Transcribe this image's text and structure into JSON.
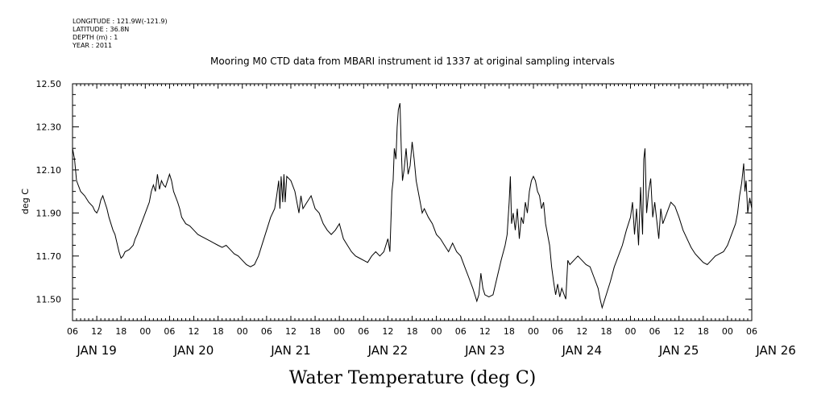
{
  "meta": {
    "longitude": "LONGITUDE : 121.9W(-121.9)",
    "latitude": "LATITUDE : 36.8N",
    "depth": "DEPTH (m) : 1",
    "year": "YEAR : 2011"
  },
  "chart_data": {
    "type": "line",
    "title": "Mooring M0 CTD data from MBARI instrument id 1337 at original sampling intervals",
    "xlabel": "Water Temperature (deg C)",
    "ylabel": "deg C",
    "ylim": [
      11.4,
      12.5
    ],
    "yticks": [
      "11.50",
      "11.70",
      "11.90",
      "12.10",
      "12.30",
      "12.50"
    ],
    "xlim": [
      0,
      168
    ],
    "x_unit": "hours since JAN 19 06",
    "hour_ticks": [
      "06",
      "12",
      "18",
      "00",
      "06",
      "12",
      "18",
      "00",
      "06",
      "12",
      "18",
      "00",
      "06",
      "12",
      "18",
      "00",
      "06",
      "12",
      "18",
      "00",
      "06",
      "12",
      "18",
      "00",
      "06",
      "12",
      "18",
      "00",
      "06"
    ],
    "day_labels": [
      "JAN 19",
      "JAN 20",
      "JAN 21",
      "JAN 22",
      "JAN 23",
      "JAN 24",
      "JAN 25",
      "JAN 26"
    ],
    "grid": false,
    "series": [
      {
        "color": "#000000",
        "points": [
          [
            0,
            12.2
          ],
          [
            0.5,
            12.15
          ],
          [
            1,
            12.05
          ],
          [
            2,
            12.0
          ],
          [
            3,
            11.98
          ],
          [
            4,
            11.95
          ],
          [
            5,
            11.93
          ],
          [
            5.5,
            11.91
          ],
          [
            6,
            11.9
          ],
          [
            6.5,
            11.92
          ],
          [
            7,
            11.96
          ],
          [
            7.5,
            11.98
          ],
          [
            8,
            11.95
          ],
          [
            8.5,
            11.92
          ],
          [
            9,
            11.88
          ],
          [
            9.5,
            11.85
          ],
          [
            10,
            11.82
          ],
          [
            10.5,
            11.8
          ],
          [
            11,
            11.76
          ],
          [
            11.5,
            11.72
          ],
          [
            12,
            11.69
          ],
          [
            12.5,
            11.7
          ],
          [
            13,
            11.72
          ],
          [
            14,
            11.73
          ],
          [
            15,
            11.75
          ],
          [
            15.5,
            11.78
          ],
          [
            16,
            11.8
          ],
          [
            17,
            11.85
          ],
          [
            18,
            11.9
          ],
          [
            19,
            11.95
          ],
          [
            19.5,
            12.0
          ],
          [
            20,
            12.03
          ],
          [
            20.5,
            12.0
          ],
          [
            21,
            12.08
          ],
          [
            21.5,
            12.01
          ],
          [
            22,
            12.05
          ],
          [
            22.5,
            12.03
          ],
          [
            23,
            12.02
          ],
          [
            23.5,
            12.05
          ],
          [
            24,
            12.08
          ],
          [
            24.5,
            12.05
          ],
          [
            25,
            12.0
          ],
          [
            26,
            11.95
          ],
          [
            26.5,
            11.92
          ],
          [
            27,
            11.88
          ],
          [
            28,
            11.85
          ],
          [
            29,
            11.84
          ],
          [
            30,
            11.82
          ],
          [
            31,
            11.8
          ],
          [
            32,
            11.79
          ],
          [
            33,
            11.78
          ],
          [
            34,
            11.77
          ],
          [
            35,
            11.76
          ],
          [
            36,
            11.75
          ],
          [
            37,
            11.74
          ],
          [
            38,
            11.75
          ],
          [
            39,
            11.73
          ],
          [
            40,
            11.71
          ],
          [
            41,
            11.7
          ],
          [
            42,
            11.68
          ],
          [
            43,
            11.66
          ],
          [
            44,
            11.65
          ],
          [
            45,
            11.66
          ],
          [
            46,
            11.7
          ],
          [
            47,
            11.76
          ],
          [
            48,
            11.82
          ],
          [
            49,
            11.88
          ],
          [
            50,
            11.92
          ],
          [
            50.5,
            11.98
          ],
          [
            51,
            12.05
          ],
          [
            51.3,
            11.92
          ],
          [
            51.6,
            12.07
          ],
          [
            52,
            11.95
          ],
          [
            52.3,
            12.08
          ],
          [
            52.6,
            11.95
          ],
          [
            53,
            12.07
          ],
          [
            54,
            12.05
          ],
          [
            55,
            12.0
          ],
          [
            55.5,
            11.95
          ],
          [
            56,
            11.9
          ],
          [
            56.5,
            11.98
          ],
          [
            57,
            11.92
          ],
          [
            58,
            11.95
          ],
          [
            59,
            11.98
          ],
          [
            60,
            11.92
          ],
          [
            61,
            11.9
          ],
          [
            62,
            11.85
          ],
          [
            63,
            11.82
          ],
          [
            64,
            11.8
          ],
          [
            65,
            11.82
          ],
          [
            66,
            11.85
          ],
          [
            67,
            11.78
          ],
          [
            68,
            11.75
          ],
          [
            69,
            11.72
          ],
          [
            70,
            11.7
          ],
          [
            71,
            11.69
          ],
          [
            72,
            11.68
          ],
          [
            73,
            11.67
          ],
          [
            74,
            11.7
          ],
          [
            75,
            11.72
          ],
          [
            76,
            11.7
          ],
          [
            77,
            11.72
          ],
          [
            78,
            11.78
          ],
          [
            78.5,
            11.72
          ],
          [
            79,
            12.0
          ],
          [
            79.3,
            12.05
          ],
          [
            79.6,
            12.2
          ],
          [
            80,
            12.15
          ],
          [
            80.3,
            12.3
          ],
          [
            80.6,
            12.38
          ],
          [
            81,
            12.41
          ],
          [
            81.3,
            12.2
          ],
          [
            81.6,
            12.05
          ],
          [
            82,
            12.1
          ],
          [
            82.5,
            12.2
          ],
          [
            83,
            12.08
          ],
          [
            83.5,
            12.12
          ],
          [
            84,
            12.23
          ],
          [
            84.5,
            12.15
          ],
          [
            85,
            12.05
          ],
          [
            86,
            11.95
          ],
          [
            86.5,
            11.9
          ],
          [
            87,
            11.92
          ],
          [
            88,
            11.88
          ],
          [
            89,
            11.85
          ],
          [
            90,
            11.8
          ],
          [
            91,
            11.78
          ],
          [
            92,
            11.75
          ],
          [
            93,
            11.72
          ],
          [
            94,
            11.76
          ],
          [
            95,
            11.72
          ],
          [
            96,
            11.7
          ],
          [
            97,
            11.65
          ],
          [
            98,
            11.6
          ],
          [
            99,
            11.55
          ],
          [
            100,
            11.49
          ],
          [
            100.5,
            11.52
          ],
          [
            101,
            11.62
          ],
          [
            101.5,
            11.55
          ],
          [
            102,
            11.52
          ],
          [
            103,
            11.51
          ],
          [
            104,
            11.52
          ],
          [
            105,
            11.6
          ],
          [
            106,
            11.68
          ],
          [
            107,
            11.75
          ],
          [
            107.5,
            11.8
          ],
          [
            108,
            11.95
          ],
          [
            108.3,
            12.07
          ],
          [
            108.6,
            11.85
          ],
          [
            109,
            11.9
          ],
          [
            109.5,
            11.82
          ],
          [
            110,
            11.92
          ],
          [
            110.5,
            11.78
          ],
          [
            111,
            11.88
          ],
          [
            111.5,
            11.85
          ],
          [
            112,
            11.95
          ],
          [
            112.5,
            11.9
          ],
          [
            113,
            12.0
          ],
          [
            113.5,
            12.05
          ],
          [
            114,
            12.07
          ],
          [
            114.5,
            12.05
          ],
          [
            115,
            12.0
          ],
          [
            115.5,
            11.98
          ],
          [
            116,
            11.92
          ],
          [
            116.5,
            11.95
          ],
          [
            117,
            11.85
          ],
          [
            118,
            11.75
          ],
          [
            118.5,
            11.65
          ],
          [
            119,
            11.58
          ],
          [
            119.5,
            11.52
          ],
          [
            120,
            11.57
          ],
          [
            120.5,
            11.51
          ],
          [
            121,
            11.55
          ],
          [
            122,
            11.5
          ],
          [
            122.5,
            11.68
          ],
          [
            123,
            11.66
          ],
          [
            124,
            11.68
          ],
          [
            125,
            11.7
          ],
          [
            126,
            11.68
          ],
          [
            127,
            11.66
          ],
          [
            128,
            11.65
          ],
          [
            129,
            11.6
          ],
          [
            130,
            11.55
          ],
          [
            130.5,
            11.5
          ],
          [
            131,
            11.46
          ],
          [
            132,
            11.52
          ],
          [
            133,
            11.58
          ],
          [
            134,
            11.65
          ],
          [
            135,
            11.7
          ],
          [
            136,
            11.75
          ],
          [
            137,
            11.82
          ],
          [
            138,
            11.88
          ],
          [
            138.5,
            11.95
          ],
          [
            139,
            11.8
          ],
          [
            139.5,
            11.92
          ],
          [
            140,
            11.75
          ],
          [
            140.5,
            12.02
          ],
          [
            141,
            11.8
          ],
          [
            141.3,
            12.15
          ],
          [
            141.6,
            12.2
          ],
          [
            142,
            11.9
          ],
          [
            142.5,
            12.0
          ],
          [
            143,
            12.06
          ],
          [
            143.5,
            11.88
          ],
          [
            144,
            11.95
          ],
          [
            145,
            11.78
          ],
          [
            145.5,
            11.92
          ],
          [
            146,
            11.85
          ],
          [
            147,
            11.9
          ],
          [
            148,
            11.95
          ],
          [
            149,
            11.93
          ],
          [
            150,
            11.88
          ],
          [
            151,
            11.82
          ],
          [
            152,
            11.78
          ],
          [
            153,
            11.74
          ],
          [
            154,
            11.71
          ],
          [
            155,
            11.69
          ],
          [
            156,
            11.67
          ],
          [
            157,
            11.66
          ],
          [
            158,
            11.68
          ],
          [
            159,
            11.7
          ],
          [
            160,
            11.71
          ],
          [
            161,
            11.72
          ],
          [
            162,
            11.75
          ],
          [
            163,
            11.8
          ],
          [
            164,
            11.85
          ],
          [
            164.5,
            11.9
          ],
          [
            165,
            11.98
          ],
          [
            165.5,
            12.04
          ],
          [
            166,
            12.13
          ],
          [
            166.3,
            12.0
          ],
          [
            166.6,
            12.05
          ],
          [
            167,
            11.9
          ],
          [
            167.5,
            11.97
          ],
          [
            168,
            11.92
          ]
        ]
      }
    ]
  }
}
